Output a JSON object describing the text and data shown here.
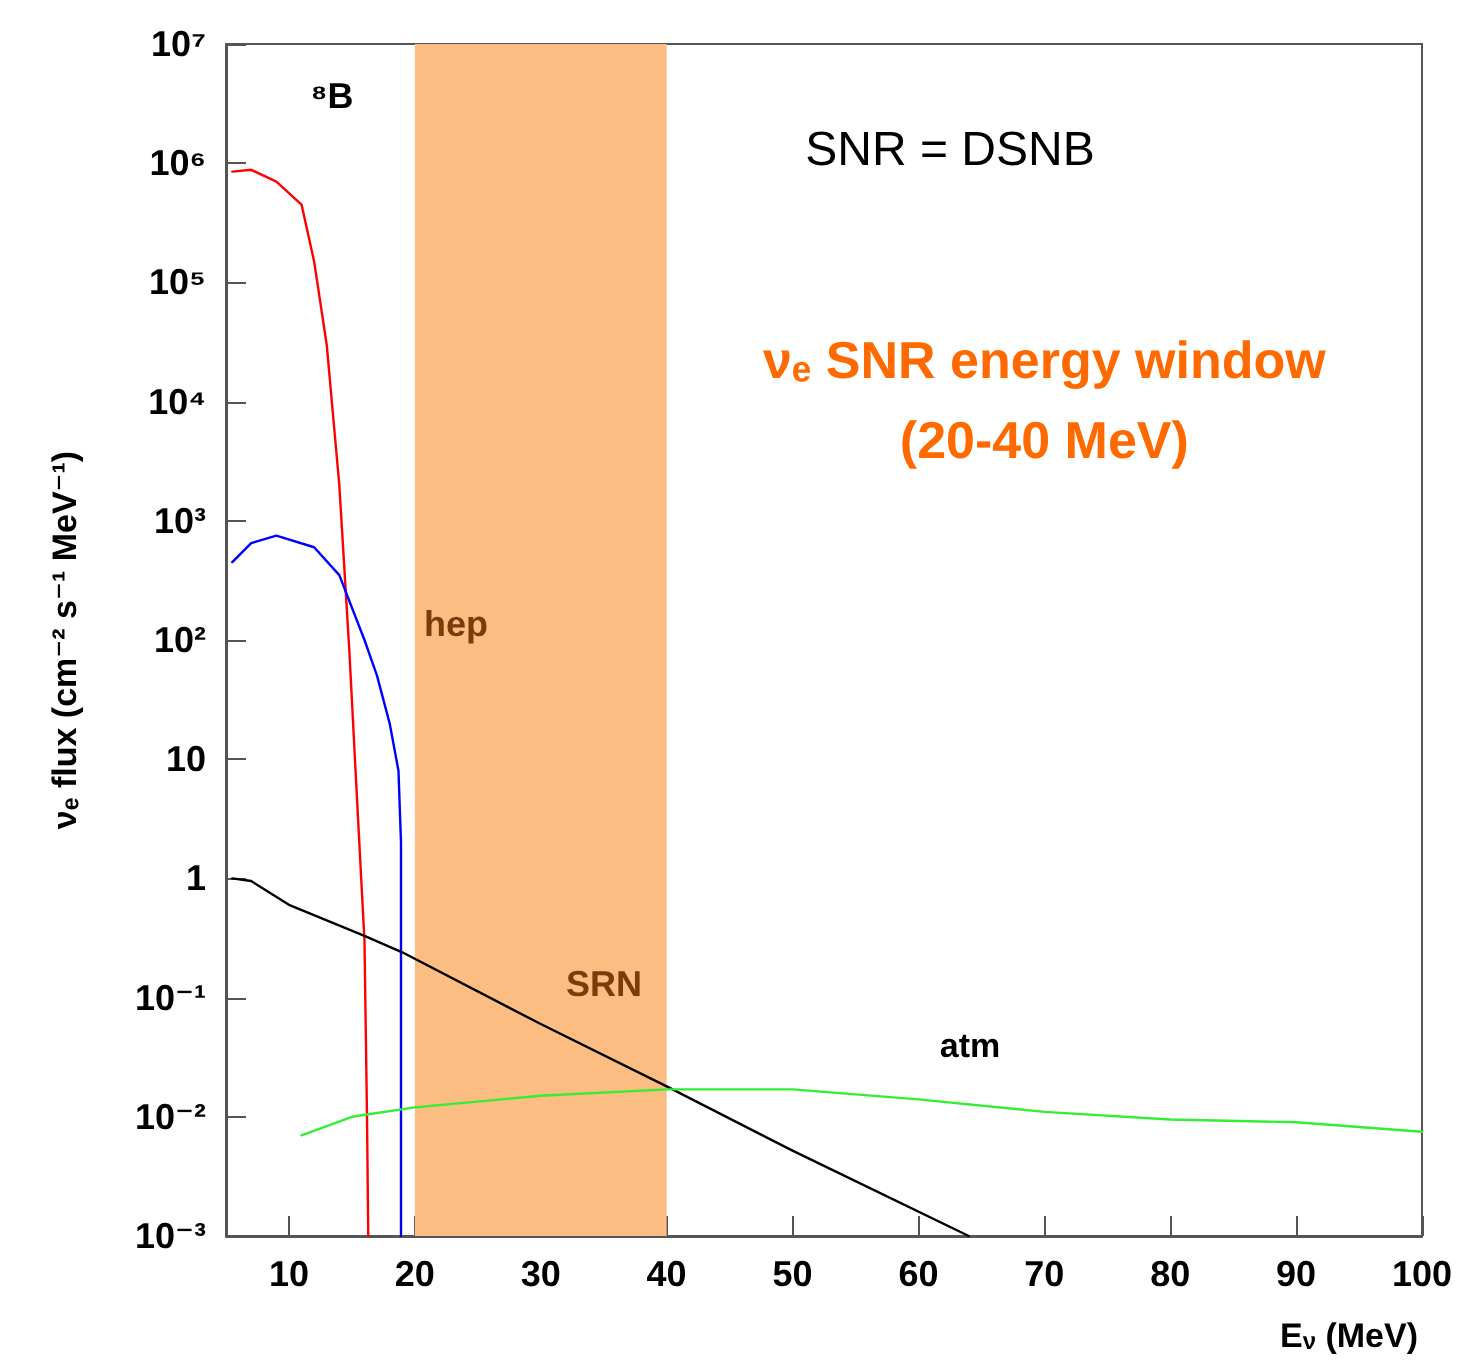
{
  "chart_data": {
    "type": "line",
    "xlabel": "E$_{ν}$ (MeV)",
    "ylabel": "νₑ flux (cm⁻² s⁻¹ MeV⁻¹)",
    "log": "y",
    "grid": false,
    "marker": "none",
    "line_style": "solid",
    "xlim": [
      5,
      100
    ],
    "xticks": [
      10,
      20,
      30,
      40,
      50,
      60,
      70,
      80,
      90,
      100
    ],
    "ylim": [
      0.001,
      10000000
    ],
    "yticks": [
      {
        "value": 0.001,
        "label": "10⁻³"
      },
      {
        "value": 0.01,
        "label": "10⁻²"
      },
      {
        "value": 0.1,
        "label": "10⁻¹"
      },
      1,
      10,
      {
        "value": 100,
        "label": "10²"
      },
      {
        "value": 1000,
        "label": "10³"
      },
      {
        "value": 10000,
        "label": "10⁴"
      },
      {
        "value": 100000,
        "label": "10⁵"
      },
      {
        "value": 1000000,
        "label": "10⁶"
      },
      {
        "value": 10000000,
        "label": "10⁷"
      }
    ],
    "series": [
      {
        "color": "#ff0000",
        "x": [
          5.5,
          7,
          9,
          11,
          12,
          13,
          14,
          14.8,
          15.5,
          16,
          16.2,
          16.3
        ],
        "values": [
          850000,
          880000,
          700000,
          450000,
          150000,
          30000,
          2000,
          80,
          3,
          0.3,
          0.01,
          0.001
        ]
      },
      {
        "color": "#0000ff",
        "x": [
          5.5,
          7,
          9,
          12,
          14,
          16,
          17,
          18,
          18.7,
          18.9,
          18.9
        ],
        "values": [
          450,
          650,
          750,
          600,
          350,
          100,
          50,
          20,
          8,
          2,
          0.001
        ]
      },
      {
        "color": "#000000",
        "x": [
          5.5,
          7,
          10,
          16,
          19,
          30,
          40,
          50,
          64
        ],
        "values": [
          1,
          0.95,
          0.6,
          0.33,
          0.24,
          0.06,
          0.018,
          0.0052,
          0.001
        ]
      },
      {
        "color": "#33ee33",
        "x": [
          11,
          15,
          20,
          30,
          40,
          50,
          60,
          70,
          80,
          90,
          100
        ],
        "values": [
          0.007,
          0.01,
          0.012,
          0.015,
          0.017,
          0.017,
          0.014,
          0.011,
          0.0095,
          0.009,
          0.0075
        ]
      }
    ],
    "bands": [
      {
        "axis": "x",
        "from": 20,
        "to": 40,
        "color": "#fbbd81",
        "label": "νₑ SNR energy window\n(20-40 MeV)"
      }
    ],
    "annotations": [
      "⁸B",
      "hep",
      "SRN",
      "atm",
      "SNR = DSNB"
    ]
  }
}
